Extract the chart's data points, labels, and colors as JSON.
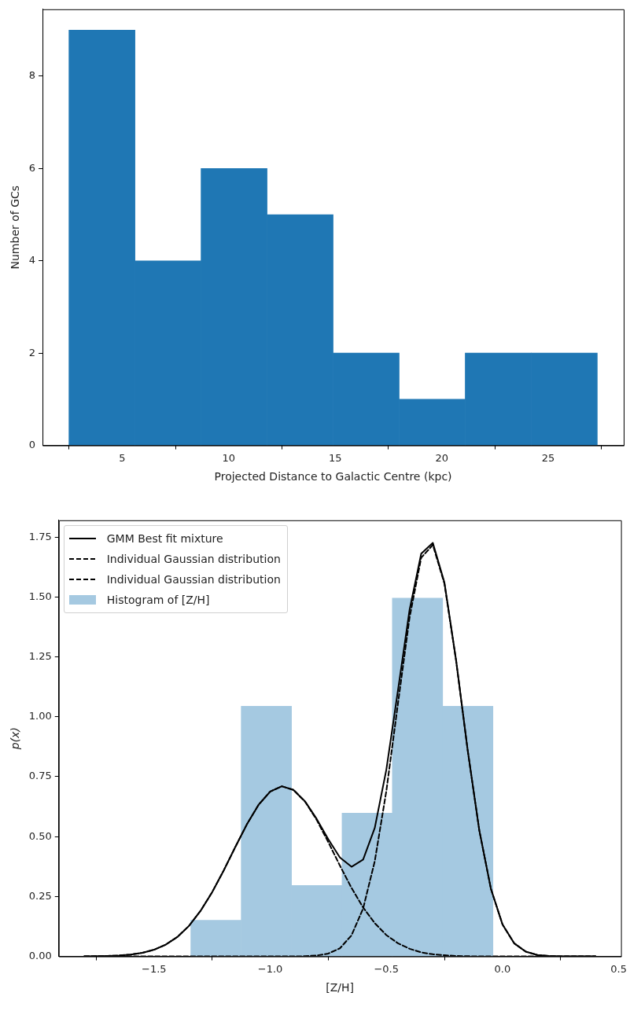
{
  "chart_data": [
    {
      "type": "histogram",
      "xlabel": "Projected Distance to Galactic Centre (kpc)",
      "ylabel": "Number of GCs",
      "bins": [
        2.5,
        5.6,
        8.7,
        11.8,
        14.9,
        18.0,
        21.1,
        24.2,
        27.3
      ],
      "values": [
        9,
        4,
        6,
        5,
        2,
        1,
        2,
        2
      ],
      "color": "#1f77b4",
      "xlim": [
        1.26,
        28.54
      ],
      "xticks": [
        5,
        10,
        15,
        20,
        25
      ],
      "ylim": [
        0,
        9.45
      ],
      "yticks": [
        0,
        2,
        4,
        6,
        8
      ],
      "grid": false,
      "legend": false
    },
    {
      "type": "histogram",
      "xlabel": "[Z/H]",
      "ylabel": "p(x)",
      "bins": [
        -1.342,
        -1.125,
        -0.908,
        -0.691,
        -0.474,
        -0.258,
        -0.041
      ],
      "series": [
        {
          "name": "GMM Best fit mixture",
          "type": "line",
          "color": "#000000",
          "line_style": "solid",
          "x": [
            -1.8,
            -1.75,
            -1.7,
            -1.65,
            -1.6,
            -1.55,
            -1.5,
            -1.45,
            -1.4,
            -1.35,
            -1.3,
            -1.25,
            -1.2,
            -1.15,
            -1.1,
            -1.05,
            -1.0,
            -0.95,
            -0.9,
            -0.85,
            -0.8,
            -0.75,
            -0.7,
            -0.65,
            -0.6,
            -0.55,
            -0.5,
            -0.45,
            -0.4,
            -0.35,
            -0.3,
            -0.25,
            -0.2,
            -0.15,
            -0.1,
            -0.05,
            0,
            0.05,
            0.1,
            0.15,
            0.2,
            0.25,
            0.3,
            0.35,
            0.4
          ],
          "values": [
            0.0,
            0.001,
            0.002,
            0.004,
            0.008,
            0.015,
            0.028,
            0.049,
            0.081,
            0.127,
            0.19,
            0.268,
            0.359,
            0.457,
            0.552,
            0.633,
            0.688,
            0.71,
            0.695,
            0.647,
            0.574,
            0.489,
            0.413,
            0.374,
            0.404,
            0.536,
            0.78,
            1.111,
            1.447,
            1.681,
            1.726,
            1.56,
            1.237,
            0.861,
            0.526,
            0.282,
            0.133,
            0.055,
            0.02,
            0.006,
            0.002,
            0,
            0,
            0,
            0
          ]
        },
        {
          "name": "Individual Gaussian distribution",
          "type": "line",
          "color": "#000000",
          "line_style": "dashed",
          "x": [
            -1.8,
            -1.75,
            -1.7,
            -1.65,
            -1.6,
            -1.55,
            -1.5,
            -1.45,
            -1.4,
            -1.35,
            -1.3,
            -1.25,
            -1.2,
            -1.15,
            -1.1,
            -1.05,
            -1.0,
            -0.95,
            -0.9,
            -0.85,
            -0.8,
            -0.75,
            -0.7,
            -0.65,
            -0.6,
            -0.55,
            -0.5,
            -0.45,
            -0.4,
            -0.35,
            -0.3,
            -0.25,
            -0.2,
            -0.15,
            -0.1,
            -0.05,
            0,
            0.05,
            0.1,
            0.15,
            0.2,
            0.25,
            0.3,
            0.35,
            0.4
          ],
          "values": [
            0.0,
            0.001,
            0.002,
            0.004,
            0.008,
            0.015,
            0.028,
            0.049,
            0.081,
            0.127,
            0.19,
            0.268,
            0.359,
            0.457,
            0.552,
            0.633,
            0.688,
            0.71,
            0.695,
            0.646,
            0.57,
            0.477,
            0.379,
            0.286,
            0.204,
            0.139,
            0.089,
            0.055,
            0.032,
            0.017,
            0.009,
            0.005,
            0.002,
            0.001,
            0,
            0,
            0,
            0,
            0,
            0,
            0,
            0,
            0,
            0,
            0
          ]
        },
        {
          "name": "Individual Gaussian distribution",
          "type": "line",
          "color": "#000000",
          "line_style": "dashed",
          "x": [
            -1.8,
            -1.75,
            -1.7,
            -1.65,
            -1.6,
            -1.55,
            -1.5,
            -1.45,
            -1.4,
            -1.35,
            -1.3,
            -1.25,
            -1.2,
            -1.15,
            -1.1,
            -1.05,
            -1.0,
            -0.95,
            -0.9,
            -0.85,
            -0.8,
            -0.75,
            -0.7,
            -0.65,
            -0.6,
            -0.55,
            -0.5,
            -0.45,
            -0.4,
            -0.35,
            -0.3,
            -0.25,
            -0.2,
            -0.15,
            -0.1,
            -0.05,
            0,
            0.05,
            0.1,
            0.15,
            0.2,
            0.25,
            0.3,
            0.35,
            0.4
          ],
          "values": [
            0,
            0,
            0,
            0,
            0,
            0,
            0,
            0,
            0,
            0,
            0,
            0,
            0,
            0,
            0,
            0,
            0,
            0,
            0,
            0.001,
            0.004,
            0.012,
            0.034,
            0.088,
            0.2,
            0.397,
            0.691,
            1.056,
            1.415,
            1.664,
            1.717,
            1.555,
            1.235,
            0.86,
            0.526,
            0.282,
            0.133,
            0.055,
            0.02,
            0.006,
            0.002,
            0,
            0,
            0,
            0
          ]
        },
        {
          "name": "Histogram of [Z/H]",
          "type": "histogram",
          "color": "#a5c9e1",
          "values": [
            0.151,
            1.044,
            0.296,
            0.598,
            1.495,
            1.044
          ]
        }
      ],
      "marker": "none",
      "xlim": [
        -1.91,
        0.51
      ],
      "xticks": [
        {
          "value": -1.5,
          "label": "−1.5"
        },
        {
          "value": -1.0,
          "label": "−1.0"
        },
        {
          "value": -0.5,
          "label": "−0.5"
        },
        {
          "value": 0.0,
          "label": "0.0"
        },
        {
          "value": 0.5,
          "label": "0.5"
        }
      ],
      "ylim": [
        0,
        1.82
      ],
      "yticks": [
        {
          "value": 0,
          "label": "0.00"
        },
        {
          "value": 0.25,
          "label": "0.25"
        },
        {
          "value": 0.5,
          "label": "0.50"
        },
        {
          "value": 0.75,
          "label": "0.75"
        },
        {
          "value": 1.0,
          "label": "1.00"
        },
        {
          "value": 1.25,
          "label": "1.25"
        },
        {
          "value": 1.5,
          "label": "1.50"
        },
        {
          "value": 1.75,
          "label": "1.75"
        }
      ],
      "grid": false,
      "legend": "top left"
    }
  ]
}
